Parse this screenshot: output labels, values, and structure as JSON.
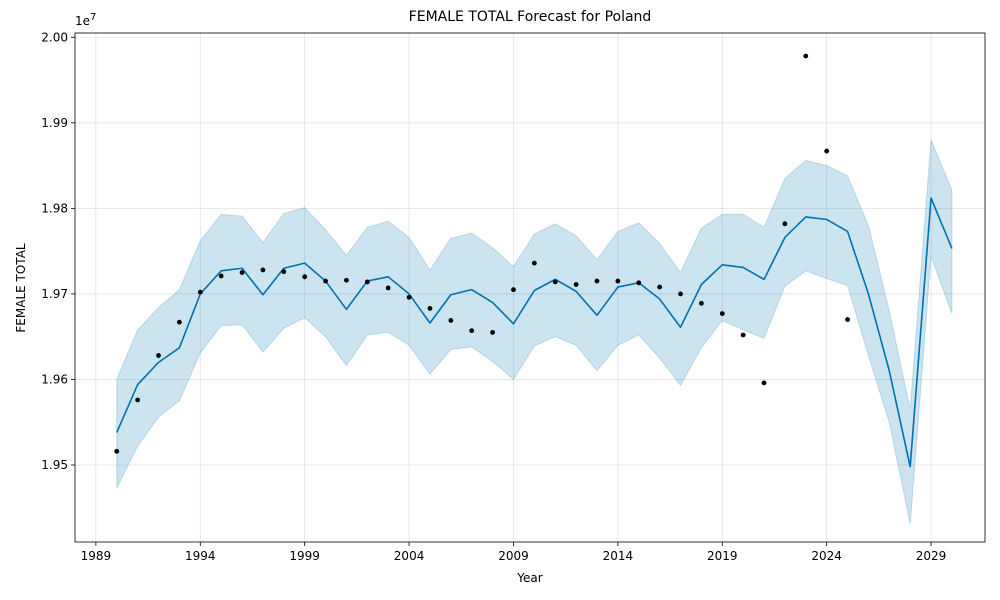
{
  "chart_data": {
    "type": "line",
    "title": "FEMALE TOTAL Forecast for Poland",
    "xlabel": "Year",
    "ylabel": "FEMALE TOTAL",
    "y_offset_label": "1e7",
    "xlim": [
      "1988-01",
      "2031-08"
    ],
    "ylim": [
      19.41,
      20.005
    ],
    "y_scale_exponent": 7,
    "x_ticks": [
      "1989",
      "1994",
      "1999",
      "2004",
      "2009",
      "2014",
      "2019",
      "2024",
      "2029"
    ],
    "y_ticks": [
      "1.95",
      "1.96",
      "1.97",
      "1.98",
      "1.99",
      "2.00"
    ],
    "y_tick_values": [
      19.5,
      19.6,
      19.7,
      19.8,
      19.9,
      20.0
    ],
    "grid": true,
    "colors": {
      "forecast_line": "#0072B2",
      "interval_fill": "#0072B2",
      "observed_points": "#000000"
    },
    "series": [
      {
        "name": "",
        "kind": "observed",
        "x": [
          1990,
          1991,
          1992,
          1993,
          1994,
          1995,
          1996,
          1997,
          1998,
          1999,
          2000,
          2001,
          2002,
          2003,
          2004,
          2005,
          2006,
          2007,
          2008,
          2009,
          2010,
          2011,
          2012,
          2013,
          2014,
          2015,
          2016,
          2017,
          2018,
          2019,
          2020,
          2021,
          2022,
          2023,
          2024,
          2025
        ],
        "y": [
          19.516,
          19.576,
          19.628,
          19.667,
          19.702,
          19.721,
          19.725,
          19.728,
          19.726,
          19.72,
          19.715,
          19.716,
          19.714,
          19.707,
          19.696,
          19.683,
          19.669,
          19.657,
          19.655,
          19.705,
          19.736,
          19.714,
          19.711,
          19.715,
          19.715,
          19.713,
          19.708,
          19.7,
          19.689,
          19.677,
          19.652,
          19.596,
          19.782,
          19.978,
          19.867,
          19.67
        ]
      },
      {
        "name": "",
        "kind": "forecast",
        "x": [
          1990,
          1991,
          1992,
          1993,
          1994,
          1995,
          1996,
          1997,
          1998,
          1999,
          2000,
          2001,
          2002,
          2003,
          2004,
          2005,
          2006,
          2007,
          2008,
          2009,
          2010,
          2011,
          2012,
          2013,
          2014,
          2015,
          2016,
          2017,
          2018,
          2019,
          2020,
          2021,
          2022,
          2023,
          2024,
          2025,
          2026,
          2027,
          2028,
          2029,
          2030
        ],
        "y": [
          19.538,
          19.594,
          19.62,
          19.637,
          19.7,
          19.727,
          19.73,
          19.699,
          19.73,
          19.736,
          19.715,
          19.682,
          19.715,
          19.72,
          19.7,
          19.666,
          19.699,
          19.705,
          19.69,
          19.665,
          19.704,
          19.717,
          19.703,
          19.675,
          19.708,
          19.713,
          19.694,
          19.661,
          19.711,
          19.734,
          19.731,
          19.717,
          19.766,
          19.79,
          19.787,
          19.773,
          19.7,
          19.61,
          19.498,
          19.812,
          19.753
        ],
        "lower": [
          19.473,
          19.522,
          19.556,
          19.575,
          19.631,
          19.663,
          19.664,
          19.632,
          19.66,
          19.672,
          19.65,
          19.616,
          19.652,
          19.655,
          19.64,
          19.606,
          19.635,
          19.638,
          19.621,
          19.6,
          19.639,
          19.65,
          19.64,
          19.61,
          19.64,
          19.652,
          19.625,
          19.593,
          19.637,
          19.669,
          19.658,
          19.648,
          19.709,
          19.727,
          19.718,
          19.71,
          19.628,
          19.55,
          19.431,
          19.744,
          19.677
        ],
        "upper": [
          19.6,
          19.658,
          19.684,
          19.705,
          19.762,
          19.793,
          19.791,
          19.76,
          19.794,
          19.801,
          19.775,
          19.745,
          19.778,
          19.785,
          19.766,
          19.728,
          19.765,
          19.771,
          19.754,
          19.732,
          19.77,
          19.782,
          19.768,
          19.74,
          19.773,
          19.783,
          19.759,
          19.725,
          19.777,
          19.793,
          19.793,
          19.778,
          19.835,
          19.856,
          19.85,
          19.838,
          19.78,
          19.68,
          19.565,
          19.88,
          19.821
        ]
      }
    ]
  }
}
